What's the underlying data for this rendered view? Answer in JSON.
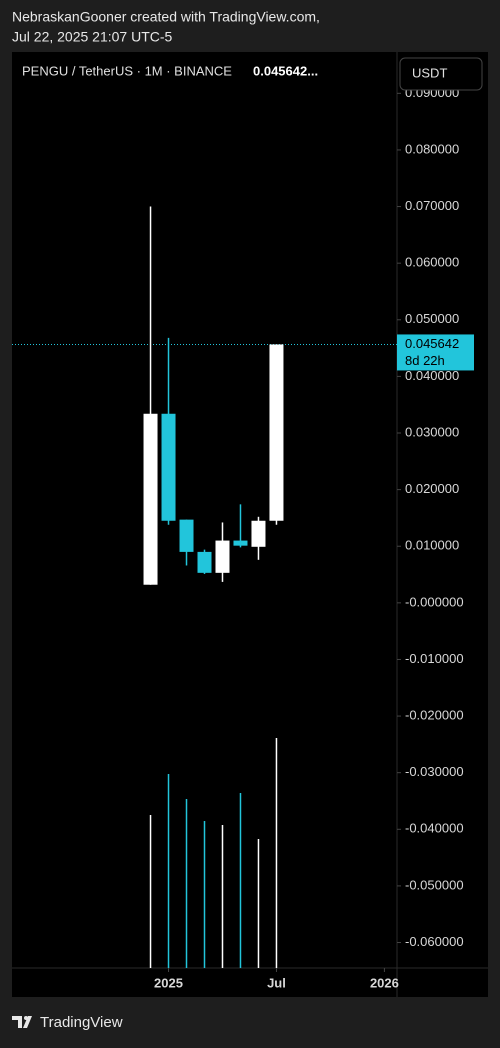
{
  "header": {
    "line1": "NebraskanGooner created with TradingView.com,",
    "line2": "Jul 22, 2025 21:07 UTC-5"
  },
  "chart_data": {
    "type": "candlestick",
    "title": "PENGU / TetherUS · 1M · BINANCE",
    "header_price": "0.045642...",
    "currency_button": "USDT",
    "x": [
      0,
      1,
      2,
      3,
      4,
      5,
      6,
      7
    ],
    "xlim": [
      -7.7,
      13.7
    ],
    "xticks": [
      {
        "value": 1,
        "label": "2025"
      },
      {
        "value": 7,
        "label": "Jul"
      },
      {
        "value": 13,
        "label": "2026"
      }
    ],
    "open": [
      0.0032,
      0.0334,
      0.0147,
      0.009,
      0.0053,
      0.011,
      0.0099,
      0.0145
    ],
    "high": [
      0.07,
      0.0468,
      0.0147,
      0.0094,
      0.0142,
      0.0174,
      0.0152,
      0.045642
    ],
    "low": [
      0.0032,
      0.0138,
      0.0066,
      0.0051,
      0.0037,
      0.0098,
      0.0076,
      0.0138
    ],
    "close": [
      0.0334,
      0.0145,
      0.009,
      0.0053,
      0.011,
      0.0101,
      0.0145,
      0.045642
    ],
    "volume": [
      153,
      194,
      169,
      147,
      143,
      175,
      129,
      230
    ],
    "up_color": "#ffffff",
    "down_color": "#22c5db",
    "ylim": [
      -0.0645,
      0.0973
    ],
    "yticks": [
      {
        "value": 0.09,
        "label": "0.090000"
      },
      {
        "value": 0.08,
        "label": "0.080000"
      },
      {
        "value": 0.07,
        "label": "0.070000"
      },
      {
        "value": 0.06,
        "label": "0.060000"
      },
      {
        "value": 0.05,
        "label": "0.050000"
      },
      {
        "value": 0.04,
        "label": "0.040000"
      },
      {
        "value": 0.03,
        "label": "0.030000"
      },
      {
        "value": 0.02,
        "label": "0.020000"
      },
      {
        "value": 0.01,
        "label": "0.010000"
      },
      {
        "value": 0,
        "label": "-0.000000"
      },
      {
        "value": -0.01,
        "label": "-0.010000"
      },
      {
        "value": -0.02,
        "label": "-0.020000"
      },
      {
        "value": -0.03,
        "label": "-0.030000"
      },
      {
        "value": -0.04,
        "label": "-0.040000"
      },
      {
        "value": -0.05,
        "label": "-0.050000"
      },
      {
        "value": -0.06,
        "label": "-0.060000"
      }
    ],
    "last_price": 0.045642,
    "last_price_label": "0.045642",
    "countdown": "8d 22h"
  },
  "footer": {
    "brand": "TradingView"
  }
}
